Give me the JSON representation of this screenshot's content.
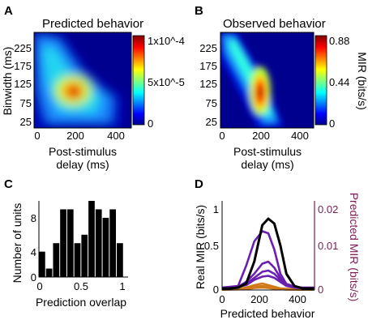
{
  "panels": {
    "A": {
      "letter": "A",
      "title": "Predicted behavior"
    },
    "B": {
      "letter": "B",
      "title": "Observed behavior"
    },
    "C": {
      "letter": "C"
    },
    "D": {
      "letter": "D"
    }
  },
  "chart_data": [
    {
      "panel": "A",
      "type": "heatmap",
      "title": "Predicted behavior",
      "xlabel": "Post-stimulus delay (ms)",
      "ylabel": "Binwidth (ms)",
      "xlim": [
        0,
        460
      ],
      "ylim": [
        15,
        255
      ],
      "xticks": [
        0,
        200,
        400
      ],
      "yticks": [
        25,
        75,
        125,
        175,
        225
      ],
      "colorbar": {
        "ticks": [
          "1x10^-4",
          "5x10^-5",
          "0"
        ],
        "range": [
          0,
          0.0001
        ],
        "colormap": "jet"
      },
      "peak": {
        "x": 180,
        "y": 110,
        "value": 0.0001
      },
      "description_values": "ridge from (10, 240) diagonally to (200, 100); max near x=180 ms, binwidth=110 ms"
    },
    {
      "panel": "B",
      "type": "heatmap",
      "title": "Observed behavior",
      "xlabel": "Post-stimulus delay (ms)",
      "ylabel": "MIR (bits/s)",
      "xlim": [
        0,
        460
      ],
      "ylim": [
        15,
        255
      ],
      "xticks": [
        0,
        200,
        400
      ],
      "yticks": [
        25,
        75,
        125,
        175,
        225
      ],
      "colorbar": {
        "ticks": [
          "0.88",
          "0.44",
          "0"
        ],
        "range": [
          0,
          0.88
        ],
        "colormap": "jet"
      },
      "peak": {
        "x": 240,
        "y": 125,
        "value": 0.88
      },
      "description_values": "narrow diagonal band from (20, 250) to (270, 30); max near x=240 ms, binwidth=125 ms"
    },
    {
      "panel": "C",
      "type": "bar",
      "xlabel": "Prediction overlap",
      "ylabel": "Number of units",
      "xlim": [
        0,
        1.05
      ],
      "ylim": [
        0,
        9
      ],
      "xticks": [
        0,
        0.5,
        1
      ],
      "yticks": [
        0,
        4,
        8
      ],
      "bin_width": 0.0833,
      "bin_starts": [
        0.0,
        0.0833,
        0.1667,
        0.25,
        0.3333,
        0.4167,
        0.5,
        0.5833,
        0.6667,
        0.75,
        0.8333,
        0.9167
      ],
      "values": [
        3,
        1,
        4,
        8,
        8,
        4,
        5,
        9,
        8,
        7,
        8,
        4
      ]
    },
    {
      "panel": "D",
      "type": "line",
      "xlabel": "Predicted behavior",
      "ylabel": "Real MIR (bits/s)",
      "y2label": "Predicted MIR (bits/s)",
      "xlim": [
        0,
        460
      ],
      "ylim": [
        0,
        1
      ],
      "y2lim": [
        0,
        0.02
      ],
      "xticks": [
        0,
        200,
        400
      ],
      "yticks": [
        0,
        0.5,
        1
      ],
      "y2ticks": [
        0,
        0.01,
        0.02
      ],
      "colors": {
        "real": "#000000",
        "purple": "#6a1fb0",
        "orange": "#d27a1a",
        "y2axis": "#7a1f55"
      },
      "x": [
        0,
        40,
        80,
        120,
        160,
        200,
        230,
        260,
        290,
        320,
        360,
        400,
        440,
        460
      ],
      "series": [
        {
          "axis": "left",
          "color": "#000000",
          "values": [
            0.02,
            0.02,
            0.03,
            0.08,
            0.35,
            0.8,
            0.88,
            0.82,
            0.55,
            0.2,
            0.05,
            0.02,
            0.02,
            0.02
          ]
        },
        {
          "axis": "right",
          "color": "#6a1fb0",
          "values": [
            0.0006,
            0.0008,
            0.001,
            0.006,
            0.012,
            0.0145,
            0.014,
            0.01,
            0.004,
            0.0015,
            0.0008,
            0.0006,
            0.0006,
            0.0006
          ]
        },
        {
          "axis": "right",
          "color": "#6a1fb0",
          "values": [
            0.0004,
            0.0005,
            0.0008,
            0.002,
            0.004,
            0.0065,
            0.007,
            0.0055,
            0.003,
            0.0015,
            0.0008,
            0.0005,
            0.0004,
            0.0004
          ]
        },
        {
          "axis": "right",
          "color": "#6a1fb0",
          "values": [
            0.0003,
            0.0004,
            0.0006,
            0.0015,
            0.003,
            0.0045,
            0.0048,
            0.004,
            0.0025,
            0.0012,
            0.0006,
            0.0004,
            0.0003,
            0.0003
          ]
        },
        {
          "axis": "right",
          "color": "#6a1fb0",
          "values": [
            0.0004,
            0.0006,
            0.0008,
            0.0012,
            0.0025,
            0.0033,
            0.0035,
            0.003,
            0.002,
            0.001,
            0.0006,
            0.0004,
            0.0004,
            0.0004
          ]
        },
        {
          "axis": "left",
          "color": "#d27a1a",
          "values": [
            0.01,
            0.01,
            0.015,
            0.03,
            0.06,
            0.08,
            0.06,
            0.04,
            0.02,
            0.015,
            0.01,
            0.01,
            0.01,
            0.01
          ]
        },
        {
          "axis": "left",
          "color": "#d27a1a",
          "values": [
            0.005,
            0.008,
            0.01,
            0.02,
            0.04,
            0.05,
            0.04,
            0.025,
            0.015,
            0.01,
            0.008,
            0.006,
            0.005,
            0.005
          ]
        },
        {
          "axis": "left",
          "color": "#d27a1a",
          "values": [
            0.003,
            0.005,
            0.008,
            0.012,
            0.025,
            0.03,
            0.025,
            0.015,
            0.01,
            0.006,
            0.004,
            0.003,
            0.003,
            0.003
          ]
        }
      ]
    }
  ],
  "labels": {
    "A_xlabel_1": "Post-stimulus",
    "A_xlabel_2": "delay (ms)",
    "A_ylabel": "Binwidth (ms)",
    "B_xlabel_1": "Post-stimulus",
    "B_xlabel_2": "delay (ms)",
    "B_cbar_label": "MIR (bits/s)",
    "C_xlabel": "Prediction overlap",
    "C_ylabel": "Number of units",
    "D_xlabel": "Predicted behavior",
    "D_ylabel": "Real MIR (bits/s)",
    "D_y2label": "Predicted MIR (bits/s)"
  },
  "ticks": {
    "heat_x": [
      "0",
      "200",
      "400"
    ],
    "heat_y": [
      "225",
      "175",
      "125",
      "75",
      "25"
    ],
    "A_cbar": [
      "1x10^-4",
      "5x10^-5",
      "0"
    ],
    "B_cbar": [
      "0.88",
      "0.44",
      "0"
    ],
    "C_x": [
      "0",
      "0.5",
      "1"
    ],
    "C_y": [
      "8",
      "4",
      "0"
    ],
    "D_x": [
      "0",
      "200",
      "400"
    ],
    "D_y": [
      "1",
      "0.5",
      "0"
    ],
    "D_y2": [
      "0.02",
      "0.01",
      "0"
    ]
  }
}
